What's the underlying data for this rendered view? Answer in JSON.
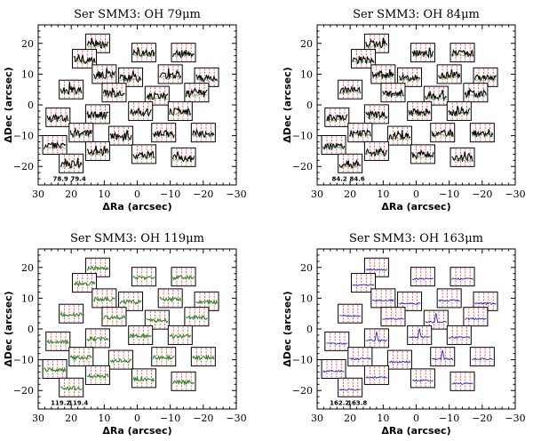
{
  "chart_data": [
    {
      "type": "scatter",
      "title": "Ser SMM3: OH 79μm",
      "xlabel": "ΔRa (arcsec)",
      "ylabel": "ΔDec (arcsec)",
      "xlim": [
        30,
        -30
      ],
      "ylim": [
        -26,
        26
      ],
      "xticks": [
        "30",
        "20",
        "10",
        "0",
        "−10",
        "−20",
        "−30"
      ],
      "yticks": [
        "−20",
        "−10",
        "0",
        "10",
        "20"
      ],
      "line_wavelengths": [
        "78.9",
        "79.4"
      ],
      "spaxels": [
        {
          "ra": 12,
          "dec": 20
        },
        {
          "ra": -2,
          "dec": 17
        },
        {
          "ra": -14,
          "dec": 17
        },
        {
          "ra": 16,
          "dec": 15
        },
        {
          "ra": 10,
          "dec": 10
        },
        {
          "ra": 2,
          "dec": 9
        },
        {
          "ra": -10,
          "dec": 10
        },
        {
          "ra": -21,
          "dec": 9
        },
        {
          "ra": 20,
          "dec": 5
        },
        {
          "ra": 7,
          "dec": 4
        },
        {
          "ra": -6,
          "dec": 3
        },
        {
          "ra": -18,
          "dec": 4
        },
        {
          "ra": 24,
          "dec": -4
        },
        {
          "ra": 12,
          "dec": -3
        },
        {
          "ra": -1,
          "dec": -2
        },
        {
          "ra": -13,
          "dec": -2
        },
        {
          "ra": 17,
          "dec": -9
        },
        {
          "ra": 5,
          "dec": -10
        },
        {
          "ra": -8,
          "dec": -9
        },
        {
          "ra": -20,
          "dec": -9
        },
        {
          "ra": 25,
          "dec": -13
        },
        {
          "ra": 12,
          "dec": -15
        },
        {
          "ra": -2,
          "dec": -16
        },
        {
          "ra": -14,
          "dec": -17
        },
        {
          "ra": 20,
          "dec": -19
        }
      ]
    },
    {
      "type": "scatter",
      "title": "Ser SMM3: OH 84μm",
      "xlabel": "ΔRa (arcsec)",
      "ylabel": "ΔDec (arcsec)",
      "xlim": [
        30,
        -30
      ],
      "ylim": [
        -26,
        26
      ],
      "xticks": [
        "30",
        "20",
        "10",
        "0",
        "−10",
        "−20",
        "−30"
      ],
      "yticks": [
        "−20",
        "−10",
        "0",
        "10",
        "20"
      ],
      "line_wavelengths": [
        "84.2",
        "84.6"
      ],
      "spaxels": [
        {
          "ra": 12,
          "dec": 20
        },
        {
          "ra": -2,
          "dec": 17
        },
        {
          "ra": -14,
          "dec": 17
        },
        {
          "ra": 16,
          "dec": 15
        },
        {
          "ra": 10,
          "dec": 10
        },
        {
          "ra": 2,
          "dec": 9
        },
        {
          "ra": -10,
          "dec": 10
        },
        {
          "ra": -21,
          "dec": 9
        },
        {
          "ra": 20,
          "dec": 5
        },
        {
          "ra": 7,
          "dec": 4
        },
        {
          "ra": -6,
          "dec": 3
        },
        {
          "ra": -18,
          "dec": 4
        },
        {
          "ra": 24,
          "dec": -4
        },
        {
          "ra": 12,
          "dec": -3
        },
        {
          "ra": -1,
          "dec": -2
        },
        {
          "ra": -13,
          "dec": -2
        },
        {
          "ra": 17,
          "dec": -9
        },
        {
          "ra": 5,
          "dec": -10
        },
        {
          "ra": -8,
          "dec": -9
        },
        {
          "ra": -20,
          "dec": -9
        },
        {
          "ra": 25,
          "dec": -13
        },
        {
          "ra": 12,
          "dec": -15
        },
        {
          "ra": -2,
          "dec": -16
        },
        {
          "ra": -14,
          "dec": -17
        },
        {
          "ra": 20,
          "dec": -19
        }
      ]
    },
    {
      "type": "scatter",
      "title": "Ser SMM3: OH 119μm",
      "xlabel": "ΔRa (arcsec)",
      "ylabel": "ΔDec (arcsec)",
      "xlim": [
        30,
        -30
      ],
      "ylim": [
        -26,
        26
      ],
      "xticks": [
        "30",
        "20",
        "10",
        "0",
        "−10",
        "−20",
        "−30"
      ],
      "yticks": [
        "−20",
        "−10",
        "0",
        "10",
        "20"
      ],
      "line_wavelengths": [
        "119.2",
        "119.4"
      ],
      "spaxels": [
        {
          "ra": 12,
          "dec": 20
        },
        {
          "ra": -2,
          "dec": 17
        },
        {
          "ra": -14,
          "dec": 17
        },
        {
          "ra": 16,
          "dec": 15
        },
        {
          "ra": 10,
          "dec": 10
        },
        {
          "ra": 2,
          "dec": 9
        },
        {
          "ra": -10,
          "dec": 10
        },
        {
          "ra": -21,
          "dec": 9
        },
        {
          "ra": 20,
          "dec": 5
        },
        {
          "ra": 7,
          "dec": 4
        },
        {
          "ra": -6,
          "dec": 3
        },
        {
          "ra": -18,
          "dec": 4
        },
        {
          "ra": 24,
          "dec": -4
        },
        {
          "ra": 12,
          "dec": -3
        },
        {
          "ra": -1,
          "dec": -2
        },
        {
          "ra": -13,
          "dec": -2
        },
        {
          "ra": 17,
          "dec": -9
        },
        {
          "ra": 5,
          "dec": -10
        },
        {
          "ra": -8,
          "dec": -9
        },
        {
          "ra": -20,
          "dec": -9
        },
        {
          "ra": 25,
          "dec": -13
        },
        {
          "ra": 12,
          "dec": -15
        },
        {
          "ra": -2,
          "dec": -16
        },
        {
          "ra": -14,
          "dec": -17
        },
        {
          "ra": 20,
          "dec": -19
        }
      ]
    },
    {
      "type": "scatter",
      "title": "Ser SMM3: OH 163μm",
      "xlabel": "ΔRa (arcsec)",
      "ylabel": "ΔDec (arcsec)",
      "xlim": [
        30,
        -30
      ],
      "ylim": [
        -26,
        26
      ],
      "xticks": [
        "30",
        "20",
        "10",
        "0",
        "−10",
        "−20",
        "−30"
      ],
      "yticks": [
        "−20",
        "−10",
        "0",
        "10",
        "20"
      ],
      "line_wavelengths": [
        "162.2",
        "163.8"
      ],
      "spaxels": [
        {
          "ra": 12,
          "dec": 20
        },
        {
          "ra": -2,
          "dec": 17
        },
        {
          "ra": -14,
          "dec": 17
        },
        {
          "ra": 16,
          "dec": 15
        },
        {
          "ra": 10,
          "dec": 10
        },
        {
          "ra": 2,
          "dec": 9
        },
        {
          "ra": -10,
          "dec": 10
        },
        {
          "ra": -21,
          "dec": 9
        },
        {
          "ra": 20,
          "dec": 5
        },
        {
          "ra": 7,
          "dec": 4
        },
        {
          "ra": -6,
          "dec": 3
        },
        {
          "ra": -18,
          "dec": 4
        },
        {
          "ra": 24,
          "dec": -4
        },
        {
          "ra": 12,
          "dec": -3
        },
        {
          "ra": -1,
          "dec": -2
        },
        {
          "ra": -13,
          "dec": -2
        },
        {
          "ra": 17,
          "dec": -9
        },
        {
          "ra": 5,
          "dec": -10
        },
        {
          "ra": -8,
          "dec": -9
        },
        {
          "ra": -20,
          "dec": -9
        },
        {
          "ra": 25,
          "dec": -13
        },
        {
          "ra": 12,
          "dec": -15
        },
        {
          "ra": -2,
          "dec": -16
        },
        {
          "ra": -14,
          "dec": -17
        },
        {
          "ra": 20,
          "dec": -19
        }
      ]
    }
  ],
  "colors": {
    "axis": "#000000",
    "line_marker": "#ff2a2a",
    "spectrum_dark": "#000000",
    "spectrum_green": "#2a8a2a",
    "spectrum_blue": "#2030c8"
  }
}
